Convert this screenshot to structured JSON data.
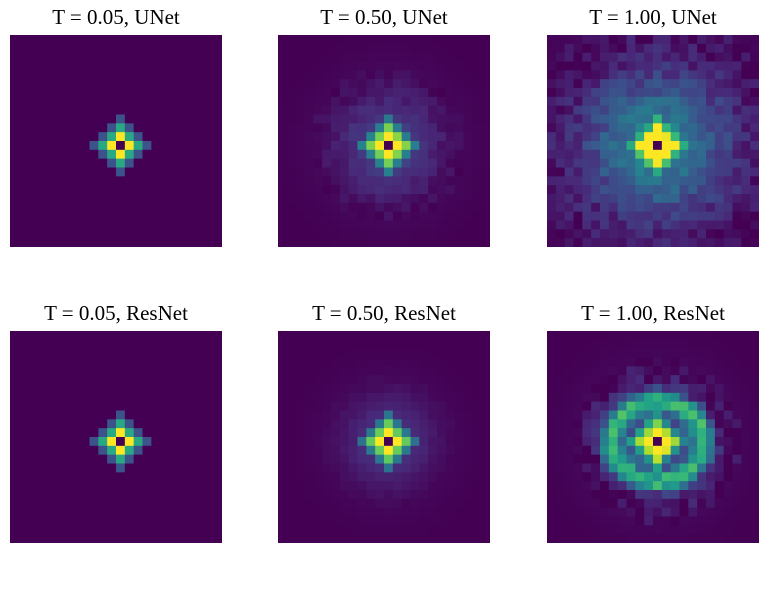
{
  "chart_data": [
    {
      "type": "heatmap",
      "title": "T = 0.05, UNet",
      "grid": 24,
      "colormap": "viridis",
      "pattern": {
        "core": 1.0,
        "halo": 0.0,
        "haloWidth": 0.0,
        "ring": 0.0,
        "ringRadius": 0.0,
        "ringWidth": 0.0,
        "noise": 0.0
      }
    },
    {
      "type": "heatmap",
      "title": "T = 0.50, UNet",
      "grid": 24,
      "colormap": "viridis",
      "pattern": {
        "core": 1.0,
        "halo": 0.22,
        "haloWidth": 4.0,
        "ring": 0.0,
        "ringRadius": 0.0,
        "ringWidth": 0.0,
        "noise": 0.03
      }
    },
    {
      "type": "heatmap",
      "title": "T = 1.00, UNet",
      "grid": 24,
      "colormap": "viridis",
      "pattern": {
        "core": 1.0,
        "halo": 0.45,
        "haloWidth": 6.0,
        "ring": 0.0,
        "ringRadius": 0.0,
        "ringWidth": 0.0,
        "noise": 0.07
      }
    },
    {
      "type": "heatmap",
      "title": "T = 0.05, ResNet",
      "grid": 24,
      "colormap": "viridis",
      "pattern": {
        "core": 1.0,
        "halo": 0.0,
        "haloWidth": 0.0,
        "ring": 0.0,
        "ringRadius": 0.0,
        "ringWidth": 0.0,
        "noise": 0.0
      }
    },
    {
      "type": "heatmap",
      "title": "T = 0.50, ResNet",
      "grid": 24,
      "colormap": "viridis",
      "pattern": {
        "core": 1.0,
        "halo": 0.18,
        "haloWidth": 3.5,
        "ring": 0.0,
        "ringRadius": 0.0,
        "ringWidth": 0.0,
        "noise": 0.01
      }
    },
    {
      "type": "heatmap",
      "title": "T = 1.00, ResNet",
      "grid": 24,
      "colormap": "viridis",
      "pattern": {
        "core": 1.0,
        "halo": 0.3,
        "haloWidth": 4.0,
        "ring": 0.55,
        "ringRadius": 5.0,
        "ringWidth": 0.8,
        "noise": 0.08
      }
    }
  ]
}
